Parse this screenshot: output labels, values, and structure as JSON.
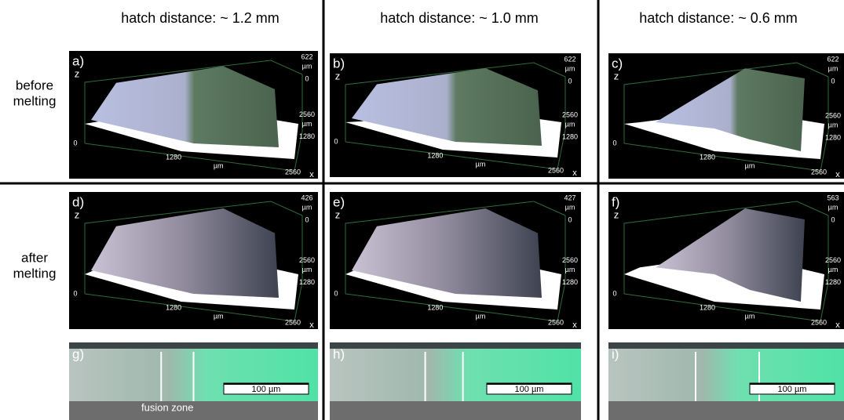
{
  "columns": [
    {
      "title": "hatch distance: ~ 1.2 mm"
    },
    {
      "title": "hatch distance: ~ 1.0 mm"
    },
    {
      "title": "hatch distance: ~ 0.6 mm"
    }
  ],
  "rows": [
    {
      "label": [
        "before",
        "melting"
      ]
    },
    {
      "label": [
        "after",
        "melting"
      ]
    }
  ],
  "panels": [
    {
      "label": "a)",
      "z_axis": "z",
      "z_max": 622,
      "z_unit": "µm",
      "z_zero": 0,
      "y_max": 2560,
      "y_unit": "µm",
      "y_mid": 1280,
      "origin": 0,
      "x_mid": 1280,
      "x_unit": "µm",
      "x_max": 2560,
      "x_axis": "x"
    },
    {
      "label": "b)",
      "z_axis": "z",
      "z_max": 622,
      "z_unit": "µm",
      "z_zero": 0,
      "y_max": 2560,
      "y_unit": "µm",
      "y_mid": 1280,
      "origin": 0,
      "x_mid": 1280,
      "x_unit": "µm",
      "x_max": 2560,
      "x_axis": "x"
    },
    {
      "label": "c)",
      "z_axis": "z",
      "z_max": 622,
      "z_unit": "µm",
      "z_zero": 0,
      "y_max": 2560,
      "y_unit": "µm",
      "y_mid": 1280,
      "origin": 0,
      "x_mid": 1280,
      "x_unit": "µm",
      "x_max": 2560,
      "x_axis": "x"
    },
    {
      "label": "d)",
      "z_axis": "z",
      "z_max": 426,
      "z_unit": "µm",
      "z_zero": 0,
      "y_max": 2560,
      "y_unit": "µm",
      "y_mid": 1280,
      "origin": 0,
      "x_mid": 1280,
      "x_unit": "µm",
      "x_max": 2560,
      "x_axis": "x"
    },
    {
      "label": "e)",
      "z_axis": "z",
      "z_max": 427,
      "z_unit": "µm",
      "z_zero": 0,
      "y_max": 2560,
      "y_unit": "µm",
      "y_mid": 1280,
      "origin": 0,
      "x_mid": 1280,
      "x_unit": "µm",
      "x_max": 2560,
      "x_axis": "x"
    },
    {
      "label": "f)",
      "z_axis": "z",
      "z_max": 563,
      "z_unit": "µm",
      "z_zero": 0,
      "y_max": 2560,
      "y_unit": "µm",
      "y_mid": 1280,
      "origin": 0,
      "x_mid": 1280,
      "x_unit": "µm",
      "x_max": 2560,
      "x_axis": "x"
    }
  ],
  "micrographs": [
    {
      "label": "g)",
      "scale_bar": "100 µm",
      "annotation": "fusion zone"
    },
    {
      "label": "h)",
      "scale_bar": "100 µm"
    },
    {
      "label": "i)",
      "scale_bar": "100 µm"
    }
  ]
}
